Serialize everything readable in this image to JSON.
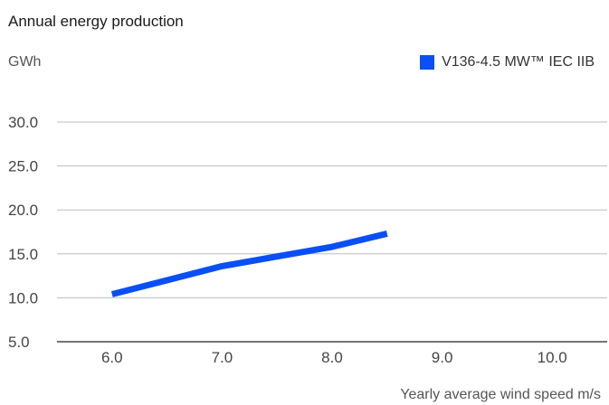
{
  "chart_data": {
    "type": "line",
    "title": "Annual energy production",
    "ylabel": "GWh",
    "xlabel": "Yearly average wind speed m/s",
    "xlim": [
      5.5,
      10.5
    ],
    "ylim": [
      5.0,
      30.0
    ],
    "xticks": [
      "6.0",
      "7.0",
      "8.0",
      "9.0",
      "10.0"
    ],
    "yticks": [
      "5.0",
      "10.0",
      "15.0",
      "20.0",
      "25.0",
      "30.0"
    ],
    "grid": "horizontal",
    "legend_position": "top-right",
    "series": [
      {
        "name": "V136-4.5 MW™ IEC IIB",
        "color": "#0a4ff5",
        "x": [
          6.0,
          6.5,
          7.0,
          7.5,
          8.0,
          8.5
        ],
        "y": [
          10.4,
          12.0,
          13.6,
          14.7,
          15.8,
          17.3
        ]
      }
    ]
  }
}
